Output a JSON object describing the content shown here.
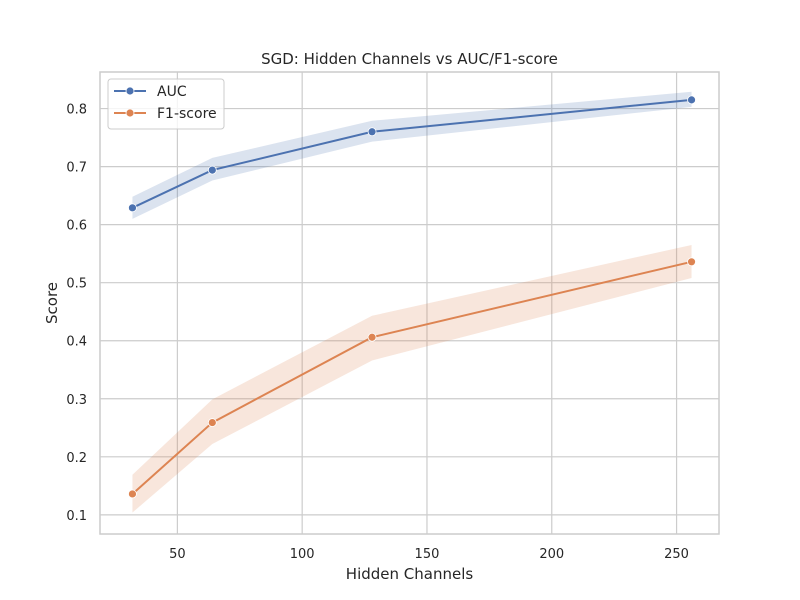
{
  "chart_data": {
    "type": "line",
    "title": "SGD: Hidden Channels vs AUC/F1-score",
    "xlabel": "Hidden Channels",
    "ylabel": "Score",
    "xlim": [
      19,
      267
    ],
    "ylim": [
      0.067,
      0.863
    ],
    "x_ticks": [
      50,
      100,
      150,
      200,
      250
    ],
    "y_ticks": [
      0.1,
      0.2,
      0.3,
      0.4,
      0.5,
      0.6,
      0.7,
      0.8
    ],
    "x_tick_labels": [
      "50",
      "100",
      "150",
      "200",
      "250"
    ],
    "y_tick_labels": [
      "0.1",
      "0.2",
      "0.3",
      "0.4",
      "0.5",
      "0.6",
      "0.7",
      "0.8"
    ],
    "x": [
      32,
      64,
      128,
      256
    ],
    "grid": true,
    "legend_position": "top-left",
    "series": [
      {
        "name": "AUC",
        "color": "#4c72b0",
        "values": [
          0.629,
          0.694,
          0.76,
          0.815
        ],
        "ci_lower": [
          0.61,
          0.676,
          0.743,
          0.803
        ],
        "ci_upper": [
          0.648,
          0.715,
          0.779,
          0.829
        ]
      },
      {
        "name": "F1-score",
        "color": "#dd8452",
        "values": [
          0.136,
          0.259,
          0.406,
          0.536
        ],
        "ci_lower": [
          0.104,
          0.222,
          0.366,
          0.508
        ],
        "ci_upper": [
          0.169,
          0.299,
          0.443,
          0.565
        ]
      }
    ]
  }
}
